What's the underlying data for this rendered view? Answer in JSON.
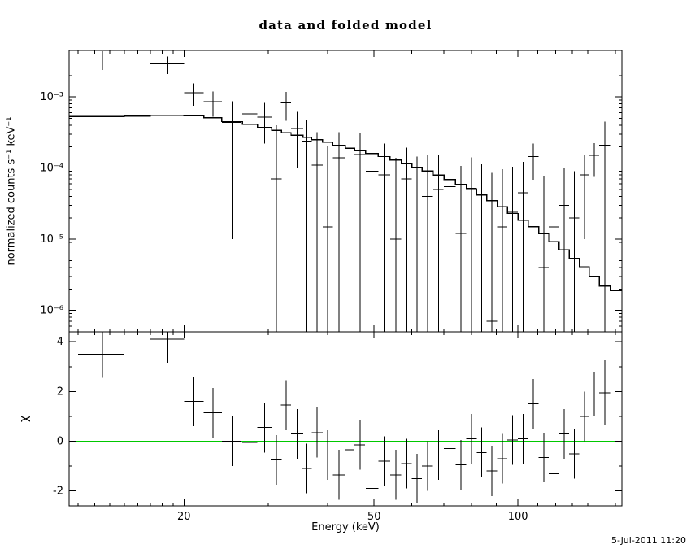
{
  "timestamp": "5-Jul-2011 11:20",
  "colors": {
    "foreground": "#000000",
    "background": "#ffffff",
    "zero_line": "#00c800"
  },
  "chart_data": [
    {
      "type": "scatter",
      "role": "spectrum",
      "title": "data and folded model",
      "ylabel": "normalized counts s⁻¹ keV⁻¹",
      "xscale": "log",
      "yscale": "log",
      "xlim": [
        11.5,
        165
      ],
      "ylim": [
        5e-07,
        0.0045
      ],
      "grid": false,
      "xticks": [
        {
          "v": 20,
          "label": "20"
        },
        {
          "v": 50,
          "label": "50"
        },
        {
          "v": 100,
          "label": "100"
        }
      ],
      "yticks": [
        {
          "v": 0.001,
          "label": "10⁻³"
        },
        {
          "v": 0.0001,
          "label": "10⁻⁴"
        },
        {
          "v": 1e-05,
          "label": "10⁻⁵"
        },
        {
          "v": 1e-06,
          "label": "10⁻⁶"
        }
      ],
      "series": [
        {
          "name": "data",
          "marker": "cross",
          "x": [
            13.5,
            18.5,
            21,
            23,
            25.2,
            27.5,
            29.5,
            31.2,
            32.7,
            34.5,
            36.2,
            38,
            40,
            42.2,
            44.5,
            46.7,
            49.5,
            52.5,
            55.5,
            58.5,
            61.5,
            64.7,
            68.2,
            72,
            76,
            80,
            84,
            88.2,
            92.7,
            97.5,
            102.5,
            107.7,
            113.2,
            119,
            125,
            131.2,
            137.7,
            144.5,
            152
          ],
          "xerr": [
            1.5,
            1.5,
            1,
            1,
            1.2,
            1,
            1,
            0.8,
            0.8,
            1,
            0.8,
            1,
            1,
            1.2,
            1,
            1.2,
            1.5,
            1.5,
            1.5,
            1.5,
            1.5,
            1.7,
            1.7,
            2,
            2,
            2,
            2,
            2.2,
            2.2,
            2.5,
            2.5,
            2.7,
            2.7,
            3,
            3,
            3.2,
            3.2,
            3.5,
            4
          ],
          "y": [
            0.0034,
            0.0029,
            0.00115,
            0.00086,
            0.00044,
            0.00058,
            0.00052,
            7e-05,
            0.00082,
            0.00036,
            0.00024,
            0.00011,
            1.5e-05,
            0.00014,
            0.000135,
            0.000155,
            9e-05,
            8e-05,
            1e-05,
            7e-05,
            2.5e-05,
            4e-05,
            5e-05,
            5.5e-05,
            1.2e-05,
            5.2e-05,
            2.5e-05,
            7e-07,
            1.5e-05,
            2.4e-05,
            4.5e-05,
            0.000145,
            4e-06,
            1.5e-05,
            3e-05,
            2e-05,
            8e-05,
            0.00015,
            0.00021
          ],
          "yerr": [
            0.001,
            0.0008,
            0.0004,
            0.00033,
            0.00043,
            0.00032,
            0.0003,
            0.00033,
            0.00036,
            0.00026,
            0.00024,
            0.00021,
            0.00019,
            0.00018,
            0.00017,
            0.00016,
            0.00015,
            0.00014,
            0.00013,
            0.000125,
            0.00012,
            0.00011,
            0.000105,
            0.0001,
            9.5e-05,
            9e-05,
            8.8e-05,
            8.5e-05,
            8.2e-05,
            8e-05,
            7.8e-05,
            7.6e-05,
            7.4e-05,
            7.2e-05,
            7e-05,
            7e-05,
            7e-05,
            7.5e-05,
            0.00024
          ]
        },
        {
          "name": "folded model",
          "style": "step",
          "bin_edges": [
            11.5,
            15,
            17,
            20,
            22,
            24,
            26.5,
            28.5,
            30.5,
            32,
            33.5,
            35.5,
            37,
            39,
            41,
            43.5,
            45.5,
            48,
            51,
            54,
            57,
            60,
            63,
            66.5,
            70,
            74,
            78,
            82,
            86,
            90.5,
            95,
            100,
            105,
            110.5,
            116,
            122,
            128,
            134.5,
            141,
            148,
            156,
            165
          ],
          "values": [
            0.00053,
            0.00054,
            0.00055,
            0.000545,
            0.00051,
            0.00045,
            0.00041,
            0.00037,
            0.00034,
            0.000315,
            0.00029,
            0.00027,
            0.00025,
            0.00023,
            0.00021,
            0.00019,
            0.000175,
            0.00016,
            0.000145,
            0.00013,
            0.000115,
            0.000103,
            9.1e-05,
            8e-05,
            6.9e-05,
            5.9e-05,
            5e-05,
            4.2e-05,
            3.5e-05,
            2.85e-05,
            2.3e-05,
            1.85e-05,
            1.5e-05,
            1.2e-05,
            9.2e-06,
            7.1e-06,
            5.4e-06,
            4.1e-06,
            3e-06,
            2.2e-06,
            1.9e-06
          ]
        }
      ]
    },
    {
      "type": "scatter",
      "role": "residuals",
      "ylabel": "χ",
      "xlabel": "Energy (keV)",
      "xscale": "log",
      "yscale": "linear",
      "xlim": [
        11.5,
        165
      ],
      "ylim": [
        -2.6,
        4.4
      ],
      "grid": false,
      "zero_line": 0,
      "xticks": [
        {
          "v": 20,
          "label": "20"
        },
        {
          "v": 50,
          "label": "50"
        },
        {
          "v": 100,
          "label": "100"
        }
      ],
      "yticks": [
        {
          "v": -2,
          "label": "-2"
        },
        {
          "v": 0,
          "label": "0"
        },
        {
          "v": 2,
          "label": "2"
        },
        {
          "v": 4,
          "label": "4"
        }
      ],
      "series": [
        {
          "name": "chi",
          "marker": "cross",
          "x": [
            13.5,
            18.5,
            21,
            23,
            25.2,
            27.5,
            29.5,
            31.2,
            32.7,
            34.5,
            36.2,
            38,
            40,
            42.2,
            44.5,
            46.7,
            49.5,
            52.5,
            55.5,
            58.5,
            61.5,
            64.7,
            68.2,
            72,
            76,
            80,
            84,
            88.2,
            92.7,
            97.5,
            102.5,
            107.7,
            113.2,
            119,
            125,
            131.2,
            137.7,
            144.5,
            152
          ],
          "xerr": [
            1.5,
            1.5,
            1,
            1,
            1.2,
            1,
            1,
            0.8,
            0.8,
            1,
            0.8,
            1,
            1,
            1.2,
            1,
            1.2,
            1.5,
            1.5,
            1.5,
            1.5,
            1.5,
            1.7,
            1.7,
            2,
            2,
            2,
            2,
            2.2,
            2.2,
            2.5,
            2.5,
            2.7,
            2.7,
            3,
            3,
            3.2,
            3.2,
            3.5,
            4
          ],
          "y": [
            3.5,
            4.1,
            1.6,
            1.15,
            0.0,
            -0.05,
            0.55,
            -0.75,
            1.45,
            0.3,
            -1.1,
            0.35,
            -0.55,
            -1.35,
            -0.35,
            -0.15,
            -1.9,
            -0.8,
            -1.35,
            -0.9,
            -1.5,
            -1.0,
            -0.55,
            -0.3,
            -0.95,
            0.1,
            -0.45,
            -1.2,
            -0.7,
            0.05,
            0.1,
            1.5,
            -0.65,
            -1.3,
            0.3,
            -0.5,
            1.0,
            1.9,
            1.95
          ],
          "yerr": [
            0.95,
            0.95,
            1,
            1,
            1,
            1,
            1,
            1,
            1,
            1,
            1,
            1,
            1,
            1,
            1,
            1,
            1,
            1,
            1,
            1,
            1,
            1,
            1,
            1,
            1,
            1,
            1,
            1,
            1,
            1,
            1,
            1,
            1,
            1,
            1,
            1,
            1,
            0.9,
            1.3
          ]
        }
      ]
    }
  ]
}
